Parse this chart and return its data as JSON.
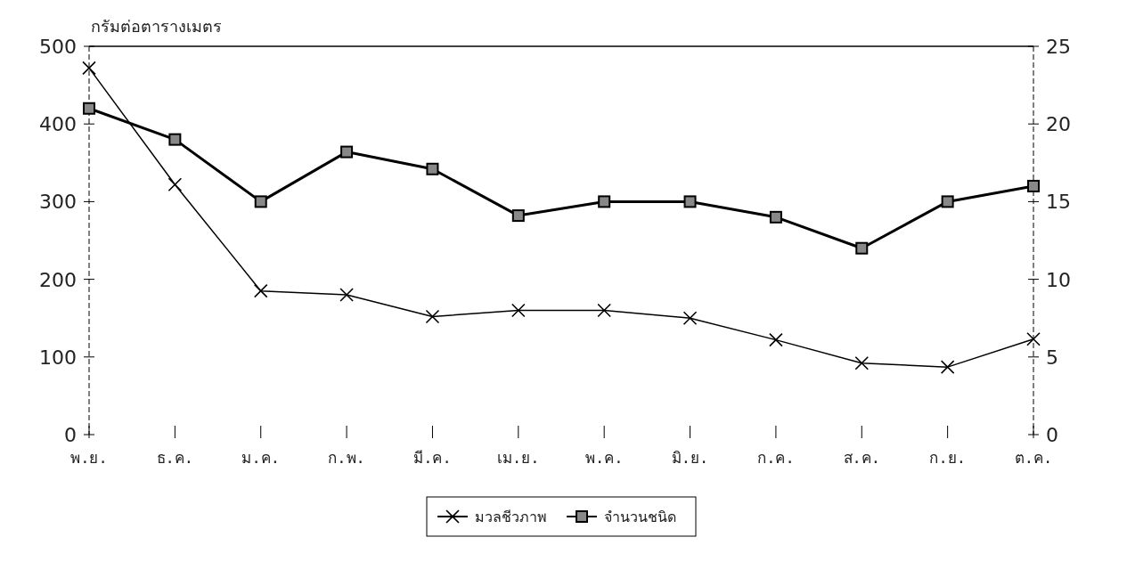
{
  "chart_data": {
    "type": "line",
    "ylabel": "กรัมต่อตารางเมตร",
    "categories": [
      "พ.ย.",
      "ธ.ค.",
      "ม.ค.",
      "ก.พ.",
      "มี.ค.",
      "เม.ย.",
      "พ.ค.",
      "มิ.ย.",
      "ก.ค.",
      "ส.ค.",
      "ก.ย.",
      "ต.ค."
    ],
    "series": [
      {
        "name": "มวลชีวภาพ",
        "color": "#000000",
        "marker": "cross",
        "values": [
          472,
          322,
          185,
          180,
          152,
          160,
          160,
          150,
          122,
          92,
          87,
          123
        ]
      },
      {
        "name": "จำนวนชนิด",
        "color": "#000000",
        "marker": "square",
        "axis": "y2",
        "values": [
          21,
          19,
          15,
          18.2,
          17.1,
          14.1,
          15,
          15,
          14,
          12,
          15,
          16
        ]
      }
    ],
    "ylim": [
      0,
      500
    ],
    "yticks": [
      0,
      100,
      200,
      300,
      400,
      500
    ],
    "y2lim": [
      0,
      25
    ],
    "y2ticks": [
      0,
      5,
      10,
      15,
      20,
      25
    ],
    "grid": false,
    "legend": "bottom"
  }
}
